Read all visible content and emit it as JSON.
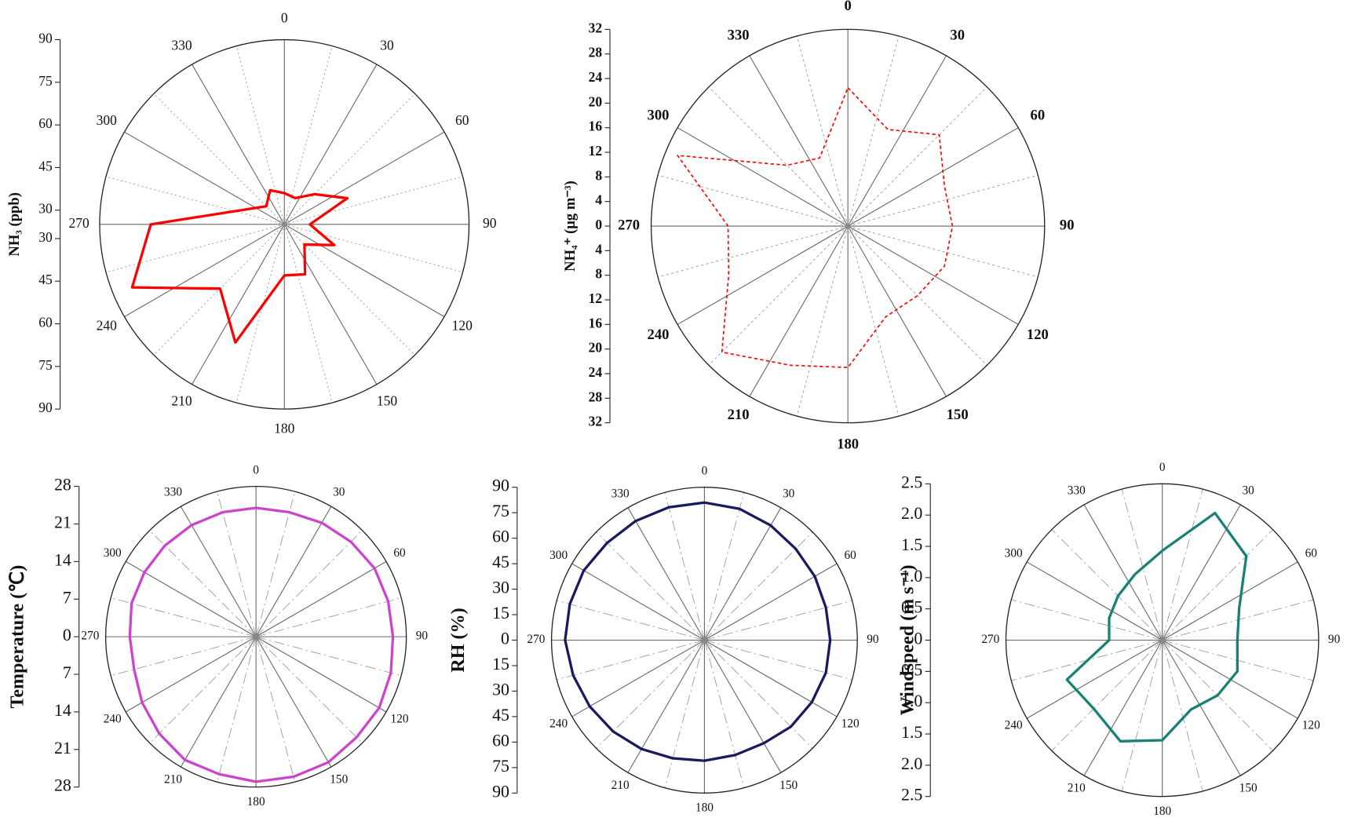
{
  "chart_data": [
    {
      "type": "polar",
      "axis_label": "NH₃ (ppb)",
      "color": "#ff0000",
      "line_style": "solid",
      "theta": [
        0,
        22.5,
        45,
        67.5,
        90,
        112.5,
        135,
        157.5,
        180,
        202.5,
        225,
        247.5,
        270,
        292.5,
        315,
        337.5
      ],
      "values": [
        36,
        35,
        40,
        49,
        34,
        44,
        35,
        44,
        43,
        70,
        57,
        83,
        72,
        39,
        34,
        38
      ],
      "rlim": [
        25,
        90
      ],
      "rticks": [
        30,
        45,
        60,
        75,
        90
      ],
      "angle_ticks": [
        0,
        30,
        60,
        90,
        120,
        150,
        180,
        210,
        240,
        270,
        300,
        330
      ]
    },
    {
      "type": "polar",
      "axis_label": "NH₄⁺ (μg m⁻³)",
      "color": "#ff0000",
      "line_style": "dashed",
      "theta": [
        0,
        22.5,
        45,
        67.5,
        90,
        112.5,
        135,
        157.5,
        180,
        202.5,
        225,
        247.5,
        270,
        292.5,
        315,
        337.5
      ],
      "values": [
        22.5,
        17,
        21,
        17,
        17,
        17,
        16,
        16,
        23,
        24.5,
        29,
        21,
        19.5,
        30,
        14,
        12
      ],
      "rlim": [
        0,
        32
      ],
      "rticks": [
        0,
        4,
        8,
        12,
        16,
        20,
        24,
        28,
        32
      ],
      "angle_ticks": [
        0,
        30,
        60,
        90,
        120,
        150,
        180,
        210,
        240,
        270,
        300,
        330
      ]
    },
    {
      "type": "polar",
      "axis_label": "Temperature (℃)",
      "color": "#cc44cc",
      "line_style": "solid",
      "theta": [
        0,
        15,
        30,
        45,
        60,
        75,
        90,
        105,
        120,
        135,
        150,
        165,
        180,
        195,
        210,
        225,
        240,
        255,
        270,
        285,
        300,
        315,
        330,
        345
      ],
      "values": [
        24,
        24,
        24.5,
        25,
        25.5,
        25.5,
        25.5,
        26,
        26.5,
        26.5,
        27,
        27,
        27,
        26.5,
        26.5,
        25.5,
        24.5,
        23.5,
        23.5,
        24,
        24,
        24,
        24,
        24
      ],
      "rlim": [
        0,
        28
      ],
      "rticks": [
        0,
        7,
        14,
        21,
        28
      ],
      "angle_ticks": [
        0,
        30,
        60,
        90,
        120,
        150,
        180,
        210,
        240,
        270,
        300,
        330
      ]
    },
    {
      "type": "polar",
      "axis_label": "RH (%)",
      "color": "#1a1a5e",
      "line_style": "solid",
      "theta": [
        0,
        15,
        30,
        45,
        60,
        75,
        90,
        105,
        120,
        135,
        150,
        165,
        180,
        195,
        210,
        225,
        240,
        255,
        270,
        285,
        300,
        315,
        330,
        345
      ],
      "values": [
        81,
        80,
        78,
        76,
        75,
        74,
        74,
        74,
        73,
        72,
        70,
        70,
        71,
        72,
        74,
        76,
        78,
        80,
        82,
        82,
        82,
        81,
        81,
        81
      ],
      "rlim": [
        0,
        90
      ],
      "rticks": [
        0,
        15,
        30,
        45,
        60,
        75,
        90
      ],
      "angle_ticks": [
        0,
        30,
        60,
        90,
        120,
        150,
        180,
        210,
        240,
        270,
        300,
        330
      ]
    },
    {
      "type": "polar",
      "axis_label": "Windspeed (m s⁻¹)",
      "color": "#1a8075",
      "line_style": "solid",
      "theta": [
        0,
        22.5,
        45,
        67.5,
        90,
        112.5,
        135,
        157.5,
        180,
        202.5,
        225,
        247.5,
        270,
        292.5,
        315,
        337.5
      ],
      "values": [
        1.43,
        2.2,
        1.9,
        1.33,
        1.2,
        1.3,
        1.25,
        1.2,
        1.6,
        1.75,
        1.55,
        1.65,
        0.85,
        0.92,
        1.0,
        1.14
      ],
      "rlim": [
        0,
        2.5
      ],
      "rticks": [
        0,
        {
          "value": 0.5,
          "label": "0.5"
        },
        {
          "value": 1,
          "label": "1.0"
        },
        {
          "value": 1.5,
          "label": "1.5"
        },
        {
          "value": 2,
          "label": "2.0"
        },
        {
          "value": 2.5,
          "label": "2.5"
        }
      ],
      "angle_ticks": [
        0,
        30,
        60,
        90,
        120,
        150,
        180,
        210,
        240,
        270,
        300,
        330
      ]
    }
  ]
}
